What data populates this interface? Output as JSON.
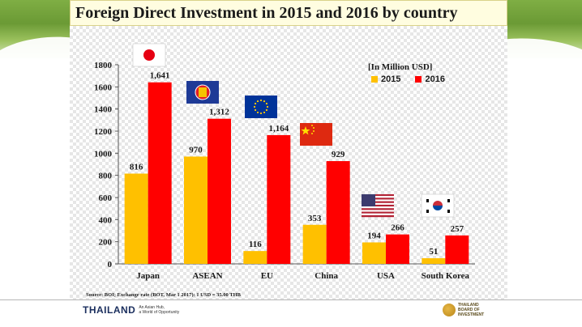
{
  "title": "Foreign Direct Investment in 2015 and 2016 by country",
  "unit_label": "[In Million USD]",
  "source": "Source: BOI; Exchange rate (BOT, Mar 1 2017): 1 USD = 35.00 THB",
  "footer": {
    "brand": "THAILAND",
    "tagline_1": "An Asian Hub,",
    "tagline_2": "a World of Opportunity",
    "logo_line_1": "THAILAND",
    "logo_line_2": "BOARD OF",
    "logo_line_3": "INVESTMENT"
  },
  "colors": {
    "series_2015": "#ffc000",
    "series_2016": "#ff0000"
  },
  "icons": [
    "japan-flag-icon",
    "asean-flag-icon",
    "eu-flag-icon",
    "china-flag-icon",
    "usa-flag-icon",
    "south-korea-flag-icon"
  ],
  "chart_data": {
    "type": "bar",
    "title": "Foreign Direct Investment in 2015 and 2016 by country",
    "xlabel": "",
    "ylabel": "",
    "ylim": [
      0,
      1800
    ],
    "yticks": [
      "0",
      "200",
      "400",
      "600",
      "800",
      "1000",
      "1200",
      "1400",
      "1600",
      "1800"
    ],
    "categories": [
      "Japan",
      "ASEAN",
      "EU",
      "China",
      "USA",
      "South Korea"
    ],
    "series": [
      {
        "name": "2015",
        "values": [
          816,
          970,
          116,
          353,
          194,
          51
        ],
        "labels": [
          "816",
          "970",
          "116",
          "353",
          "194",
          "51"
        ]
      },
      {
        "name": "2016",
        "values": [
          1641,
          1312,
          1164,
          929,
          266,
          257
        ],
        "labels": [
          "1,641",
          "1,312",
          "1,164",
          "929",
          "266",
          "257"
        ]
      }
    ],
    "legend_position": "top-right",
    "grid": false
  }
}
